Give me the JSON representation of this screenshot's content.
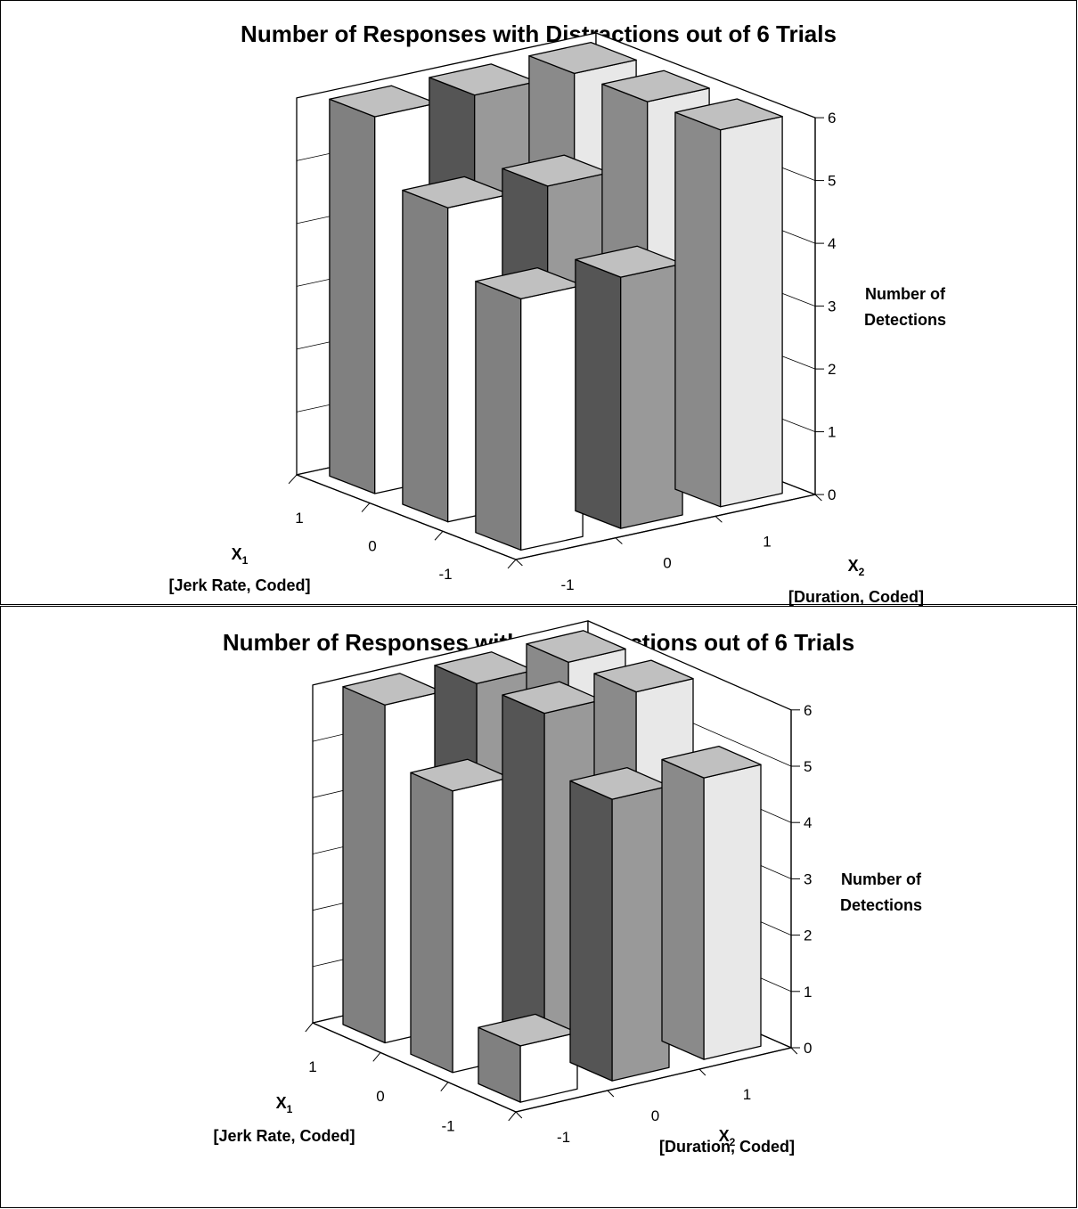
{
  "chart_data": [
    {
      "type": "bar3d",
      "title": "Number of Responses with Distractions out of 6 Trials",
      "x1_label": "X",
      "x1_sub": "1",
      "x1_desc": "[Jerk Rate, Coded]",
      "x2_label": "X",
      "x2_sub": "2",
      "x2_desc": "[Duration, Coded]",
      "zlabel_line1": "Number of",
      "zlabel_line2": "Detections",
      "x1_levels": [
        "1",
        "0",
        "-1"
      ],
      "x2_levels": [
        "-1",
        "0",
        "1"
      ],
      "z_ticks": [
        "0",
        "1",
        "2",
        "3",
        "4",
        "5",
        "6"
      ],
      "zlim": [
        0,
        6
      ],
      "values": [
        {
          "x1": "1",
          "x2": "-1",
          "z": 6
        },
        {
          "x1": "1",
          "x2": "0",
          "z": 6
        },
        {
          "x1": "1",
          "x2": "1",
          "z": 6
        },
        {
          "x1": "0",
          "x2": "-1",
          "z": 5
        },
        {
          "x1": "0",
          "x2": "0",
          "z": 5
        },
        {
          "x1": "0",
          "x2": "1",
          "z": 6
        },
        {
          "x1": "-1",
          "x2": "-1",
          "z": 4
        },
        {
          "x1": "-1",
          "x2": "0",
          "z": 4
        },
        {
          "x1": "-1",
          "x2": "1",
          "z": 6
        }
      ]
    },
    {
      "type": "bar3d",
      "title": "Number of Responses without Distractions out of 6 Trials",
      "x1_label": "X",
      "x1_sub": "1",
      "x1_desc": "[Jerk Rate, Coded]",
      "x2_label": "X",
      "x2_sub": "2",
      "x2_desc": "[Duration, Coded]",
      "zlabel_line1": "Number of",
      "zlabel_line2": "Detections",
      "x1_levels": [
        "1",
        "0",
        "-1"
      ],
      "x2_levels": [
        "-1",
        "0",
        "1"
      ],
      "z_ticks": [
        "0",
        "1",
        "2",
        "3",
        "4",
        "5",
        "6"
      ],
      "zlim": [
        0,
        6
      ],
      "values": [
        {
          "x1": "1",
          "x2": "-1",
          "z": 6
        },
        {
          "x1": "1",
          "x2": "0",
          "z": 6
        },
        {
          "x1": "1",
          "x2": "1",
          "z": 6
        },
        {
          "x1": "0",
          "x2": "-1",
          "z": 5
        },
        {
          "x1": "0",
          "x2": "0",
          "z": 6
        },
        {
          "x1": "0",
          "x2": "1",
          "z": 6
        },
        {
          "x1": "-1",
          "x2": "-1",
          "z": 1
        },
        {
          "x1": "-1",
          "x2": "0",
          "z": 5
        },
        {
          "x1": "-1",
          "x2": "1",
          "z": 5
        }
      ]
    }
  ],
  "colors": {
    "bar_side": "#808080",
    "bar_top": "#c0c0c0",
    "col_neg1_front": "#ffffff",
    "col_zero_front": "#999999",
    "col_zero_side": "#555555",
    "col_pos1_front": "#e8e8e8",
    "col_pos1_side": "#8a8a8a",
    "line": "#000000"
  }
}
